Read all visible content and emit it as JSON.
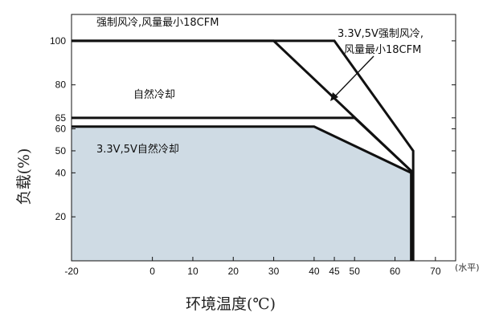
{
  "chart_data": {
    "type": "line",
    "xlabel": "环境温度(℃)",
    "ylabel": "负载(%)",
    "x_unit_note": "(水平)",
    "xlim": [
      -20,
      75
    ],
    "ylim": [
      0,
      112
    ],
    "x_ticks": [
      -20,
      0,
      10,
      20,
      30,
      40,
      45,
      50,
      60,
      70
    ],
    "y_ticks": [
      20,
      40,
      50,
      60,
      65,
      80,
      100
    ],
    "grid": false,
    "shaded_region_color": "#cfdbe4",
    "series": [
      {
        "name": "强制风冷,风量最小18CFM",
        "x": [
          -20,
          30,
          64.5
        ],
        "y": [
          100,
          100,
          40
        ]
      },
      {
        "name": "3.3V,5V强制风冷,风量最小18CFM",
        "x": [
          -20,
          45,
          64.5,
          64.5
        ],
        "y": [
          100,
          100,
          50,
          0
        ]
      },
      {
        "name": "自然冷却",
        "x": [
          -20,
          50,
          64.5
        ],
        "y": [
          65,
          65,
          40
        ]
      },
      {
        "name": "3.3V,5V自然冷却",
        "x": [
          -20,
          40,
          64,
          64
        ],
        "y": [
          61,
          61,
          40,
          0
        ]
      }
    ],
    "annotations": [
      {
        "text": "强制风冷,风量最小18CFM"
      },
      {
        "text": "3.3V,5V强制风冷,",
        "text2": "风量最小18CFM"
      },
      {
        "text": "自然冷却"
      },
      {
        "text": "3.3V,5V自然冷却"
      }
    ]
  }
}
